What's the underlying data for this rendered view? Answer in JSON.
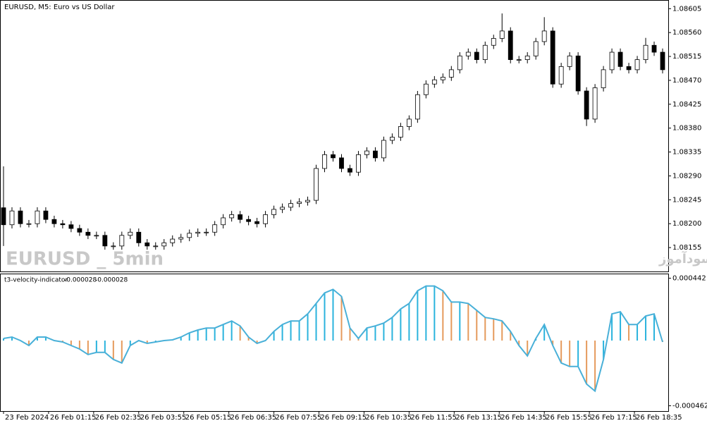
{
  "chart_data": [
    {
      "type": "candlestick",
      "title": "EURUSD, M5:  Euro vs US Dollar",
      "watermark": "EURUSD _ 5min",
      "site_text": "انتشار در سایت سودآموز",
      "bull_color": "#ffffff",
      "bear_color": "#000000",
      "outline_color": "#000000",
      "xlim": [
        -1,
        236
      ],
      "ylim": [
        1.0811,
        1.0862
      ],
      "yticks": [
        1.08605,
        {
          "value": 1.0856,
          "label": "1.08560"
        },
        1.08515,
        {
          "value": 1.0847,
          "label": "1.08470"
        },
        1.08425,
        {
          "value": 1.0838,
          "label": "1.08380"
        },
        1.08335,
        {
          "value": 1.0829,
          "label": "1.08290"
        },
        1.08245,
        {
          "value": 1.082,
          "label": "1.08200"
        },
        1.08155
      ],
      "x": [
        0,
        3,
        6,
        9,
        12,
        15,
        18,
        21,
        24,
        27,
        30,
        33,
        36,
        39,
        42,
        45,
        48,
        51,
        54,
        57,
        60,
        63,
        66,
        69,
        72,
        75,
        78,
        81,
        84,
        87,
        90,
        93,
        96,
        99,
        102,
        105,
        108,
        111,
        114,
        117,
        120,
        123,
        126,
        129,
        132,
        135,
        138,
        141,
        144,
        147,
        150,
        153,
        156,
        159,
        162,
        165,
        168,
        171,
        174,
        177,
        180,
        183,
        186,
        189,
        192,
        195,
        198,
        201,
        204,
        207,
        210,
        213,
        216,
        219,
        222,
        225,
        228,
        231,
        234
      ],
      "open": [
        1.0823,
        1.08198,
        1.08224,
        1.082,
        1.082,
        1.08224,
        1.08208,
        1.082,
        1.08198,
        1.08191,
        1.08184,
        1.08178,
        1.08178,
        1.08158,
        1.08158,
        1.08178,
        1.08184,
        1.08164,
        1.08158,
        1.08158,
        1.08164,
        1.08171,
        1.08174,
        1.08182,
        1.08184,
        1.08184,
        1.08198,
        1.08211,
        1.08217,
        1.08208,
        1.08204,
        1.082,
        1.08217,
        1.08227,
        1.08231,
        1.08238,
        1.08241,
        1.08244,
        1.08304,
        1.0833,
        1.08324,
        1.08304,
        1.08297,
        1.0833,
        1.08337,
        1.08324,
        1.08357,
        1.08363,
        1.08383,
        1.08397,
        1.08443,
        1.08463,
        1.08471,
        1.08476,
        1.0849,
        1.08516,
        1.08523,
        1.08509,
        1.08536,
        1.08549,
        1.08563,
        1.08509,
        1.08509,
        1.08516,
        1.08543,
        1.08563,
        1.08463,
        1.08496,
        1.08516,
        1.0845,
        1.08397,
        1.08456,
        1.0849,
        1.08523,
        1.08496,
        1.0849,
        1.08509,
        1.08536,
        1.08523
      ],
      "high": [
        1.08308,
        1.08231,
        1.08231,
        1.08207,
        1.08231,
        1.08231,
        1.08215,
        1.08207,
        1.08205,
        1.08198,
        1.08191,
        1.08185,
        1.08185,
        1.08165,
        1.08185,
        1.08191,
        1.08191,
        1.08171,
        1.08165,
        1.08171,
        1.08178,
        1.08181,
        1.08189,
        1.08191,
        1.08191,
        1.08205,
        1.08218,
        1.08224,
        1.08224,
        1.08215,
        1.08211,
        1.08224,
        1.08234,
        1.08238,
        1.08245,
        1.08248,
        1.08251,
        1.08311,
        1.08337,
        1.08337,
        1.08331,
        1.08311,
        1.08337,
        1.08344,
        1.08344,
        1.08364,
        1.0837,
        1.0839,
        1.08404,
        1.0845,
        1.0847,
        1.08478,
        1.08483,
        1.08497,
        1.08523,
        1.0853,
        1.0853,
        1.08543,
        1.08556,
        1.08596,
        1.0857,
        1.08516,
        1.08523,
        1.0855,
        1.08589,
        1.0857,
        1.08503,
        1.08523,
        1.08523,
        1.08457,
        1.08463,
        1.08497,
        1.0853,
        1.0853,
        1.08503,
        1.08516,
        1.0855,
        1.08543,
        1.0853
      ],
      "low": [
        1.08158,
        1.08191,
        1.08193,
        1.08193,
        1.08193,
        1.08201,
        1.08193,
        1.08191,
        1.08184,
        1.08177,
        1.08171,
        1.08171,
        1.08151,
        1.08151,
        1.08151,
        1.08171,
        1.08157,
        1.08151,
        1.08151,
        1.08151,
        1.08157,
        1.08164,
        1.08167,
        1.08175,
        1.08177,
        1.08177,
        1.08191,
        1.08204,
        1.08201,
        1.08197,
        1.08193,
        1.08193,
        1.0821,
        1.0822,
        1.08224,
        1.08231,
        1.08234,
        1.08237,
        1.08297,
        1.08317,
        1.08297,
        1.0829,
        1.0829,
        1.08323,
        1.08317,
        1.08317,
        1.0835,
        1.08356,
        1.08376,
        1.0839,
        1.08436,
        1.08456,
        1.08464,
        1.08469,
        1.08483,
        1.08509,
        1.08502,
        1.08502,
        1.08529,
        1.08542,
        1.08502,
        1.08502,
        1.08502,
        1.08509,
        1.08536,
        1.08456,
        1.08456,
        1.08489,
        1.08443,
        1.08384,
        1.0839,
        1.08449,
        1.08483,
        1.08489,
        1.08483,
        1.08483,
        1.08502,
        1.08516,
        1.08483
      ],
      "close": [
        1.08198,
        1.08224,
        1.082,
        1.082,
        1.08224,
        1.08208,
        1.082,
        1.08198,
        1.08191,
        1.08184,
        1.08178,
        1.08178,
        1.08158,
        1.08158,
        1.08178,
        1.08184,
        1.08164,
        1.08158,
        1.08158,
        1.08164,
        1.08171,
        1.08174,
        1.08182,
        1.08184,
        1.08184,
        1.08198,
        1.08211,
        1.08217,
        1.08208,
        1.08204,
        1.082,
        1.08217,
        1.08227,
        1.08231,
        1.08238,
        1.08241,
        1.08244,
        1.08304,
        1.0833,
        1.08324,
        1.08304,
        1.08297,
        1.0833,
        1.08337,
        1.08324,
        1.08357,
        1.08363,
        1.08383,
        1.08397,
        1.08443,
        1.08463,
        1.08471,
        1.08476,
        1.0849,
        1.08516,
        1.08523,
        1.08509,
        1.08536,
        1.08549,
        1.08563,
        1.08509,
        1.08509,
        1.08516,
        1.08543,
        1.08563,
        1.08463,
        1.08496,
        1.08516,
        1.0845,
        1.08397,
        1.08456,
        1.0849,
        1.08523,
        1.08496,
        1.0849,
        1.08509,
        1.08536,
        1.08523,
        1.0849
      ]
    },
    {
      "type": "histogram",
      "indicator_name": "t3-velocity-indicator",
      "indicator_values": [
        -2.8e-05,
        -2.8e-05
      ],
      "up_color": "#2ab3dd",
      "down_color": "#e59a5c",
      "line_color": "#49b0d8",
      "xlim": [
        -1,
        236
      ],
      "ylim": [
        -0.0005,
        0.00047
      ],
      "yticks": [
        0.000442,
        -0.000462
      ],
      "xticks": [
        {
          "value": 0,
          "label": "23 Feb 2024"
        },
        {
          "value": 16,
          "label": "26 Feb 01:15"
        },
        {
          "value": 32,
          "label": "26 Feb 02:35"
        },
        {
          "value": 48,
          "label": "26 Feb 03:55"
        },
        {
          "value": 64,
          "label": "26 Feb 05:15"
        },
        {
          "value": 80,
          "label": "26 Feb 06:35"
        },
        {
          "value": 96,
          "label": "26 Feb 07:55"
        },
        {
          "value": 112,
          "label": "26 Feb 09:15"
        },
        {
          "value": 128,
          "label": "26 Feb 10:35"
        },
        {
          "value": 144,
          "label": "26 Feb 11:55"
        },
        {
          "value": 160,
          "label": "26 Feb 13:15"
        },
        {
          "value": 176,
          "label": "26 Feb 14:35"
        },
        {
          "value": 192,
          "label": "26 Feb 15:55"
        },
        {
          "value": 208,
          "label": "26 Feb 17:15"
        },
        {
          "value": 224,
          "label": "26 Feb 18:35"
        }
      ],
      "x": [
        0,
        3,
        6,
        9,
        12,
        15,
        18,
        21,
        24,
        27,
        30,
        33,
        36,
        39,
        42,
        45,
        48,
        51,
        54,
        57,
        60,
        63,
        66,
        69,
        72,
        75,
        78,
        81,
        84,
        87,
        90,
        93,
        96,
        99,
        102,
        105,
        108,
        111,
        114,
        117,
        120,
        123,
        126,
        129,
        132,
        135,
        138,
        141,
        144,
        147,
        150,
        153,
        156,
        159,
        162,
        165,
        168,
        171,
        174,
        177,
        180,
        183,
        186,
        189,
        192,
        195,
        198,
        201,
        204,
        207,
        210,
        213,
        216,
        219,
        222,
        225,
        228,
        231,
        234
      ],
      "values": [
        1.5e-05,
        2.5e-05,
        0,
        -3.5e-05,
        2.5e-05,
        2.5e-05,
        0,
        -1e-05,
        -3.5e-05,
        -6e-05,
        -9.9e-05,
        -8.4e-05,
        -8.4e-05,
        -0.000134,
        -0.000159,
        -3.5e-05,
        0,
        -2e-05,
        -1e-05,
        0,
        5e-06,
        2.5e-05,
        5.5e-05,
        7.5e-05,
        8.9e-05,
        8.9e-05,
        0.000114,
        0.000139,
        0.000104,
        2.5e-05,
        -2e-05,
        0,
        6.5e-05,
        0.000114,
        0.000139,
        0.000139,
        0.000189,
        0.000263,
        0.000338,
        0.000363,
        0.000313,
        8.9e-05,
        1.5e-05,
        8.9e-05,
        0.000104,
        0.000124,
        0.000164,
        0.000224,
        0.000263,
        0.000353,
        0.000387,
        0.000387,
        0.000353,
        0.000273,
        0.000273,
        0.000263,
        0.000214,
        0.000164,
        0.000154,
        0.000139,
        6.5e-05,
        -3.5e-05,
        -0.000109,
        1.5e-05,
        0.000114,
        -3.5e-05,
        -0.000159,
        -0.000184,
        -0.000184,
        -0.000308,
        -0.000358,
        -0.000134,
        0.000189,
        0.000204,
        0.000114,
        0.000114,
        0.000174,
        0.000189,
        -1e-05
      ]
    }
  ]
}
